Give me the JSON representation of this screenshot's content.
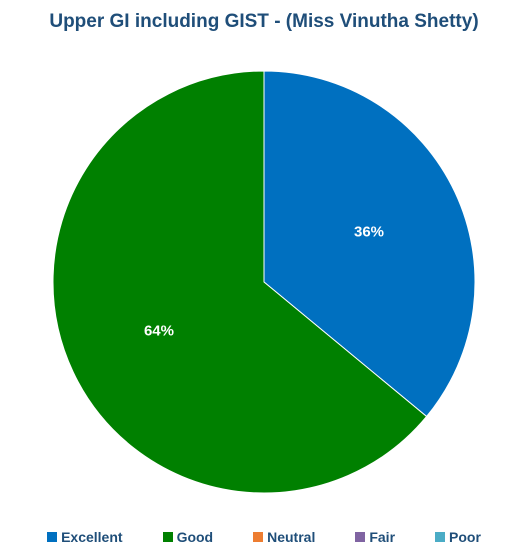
{
  "chart_data": {
    "type": "pie",
    "title": "Upper GI including GIST  - (Miss Vinutha Shetty)",
    "categories": [
      "Excellent",
      "Good",
      "Neutral",
      "Fair",
      "Poor"
    ],
    "values": [
      36,
      64,
      0,
      0,
      0
    ],
    "data_labels": [
      "36%",
      "64%",
      "",
      "",
      ""
    ],
    "colors": [
      "#0070c0",
      "#008000",
      "#ed7d31",
      "#8064a2",
      "#4bacc6"
    ],
    "legend_position": "bottom"
  }
}
